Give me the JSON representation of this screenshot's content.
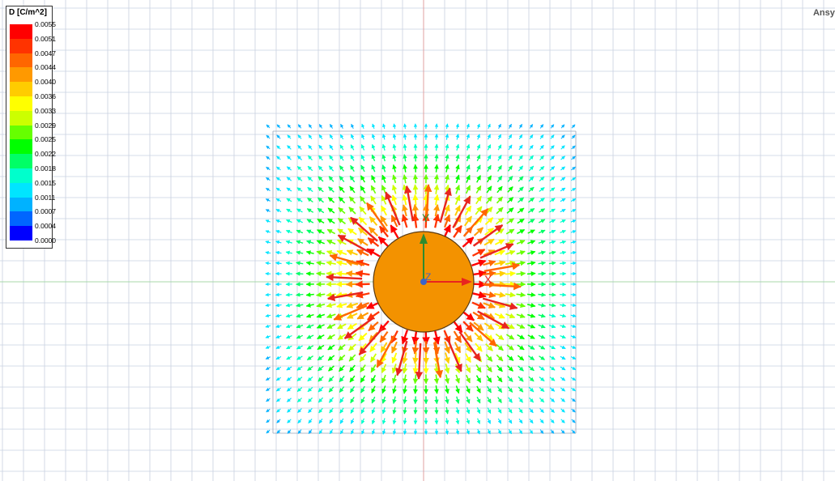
{
  "app": {
    "brand": "Ansys"
  },
  "legend": {
    "title": "D [C/m^2]",
    "ticks": [
      "0.0055",
      "0.0051",
      "0.0047",
      "0.0044",
      "0.0040",
      "0.0036",
      "0.0033",
      "0.0029",
      "0.0025",
      "0.0022",
      "0.0018",
      "0.0015",
      "0.0011",
      "0.0007",
      "0.0004",
      "0.0000"
    ],
    "colors": [
      "#ff0000",
      "#ff3300",
      "#ff6600",
      "#ff9900",
      "#ffcc00",
      "#ffff00",
      "#ccff00",
      "#66ff00",
      "#00ff00",
      "#00ff66",
      "#00ffcc",
      "#00e5ff",
      "#00b2ff",
      "#0066ff",
      "#0000ff"
    ]
  },
  "axes": {
    "x_label": "X",
    "y_label": "Y",
    "z_label": "Z",
    "x_color": "#e8241f",
    "y_color": "#2e8b2e",
    "z_color": "#3a64c8"
  },
  "scene": {
    "object_color": "#f39200",
    "object_outline": "#5a3a10",
    "grid_color": "#c8d0e0",
    "center_line_v": "#e0a0a0",
    "center_line_h": "#a8d8a8"
  }
}
